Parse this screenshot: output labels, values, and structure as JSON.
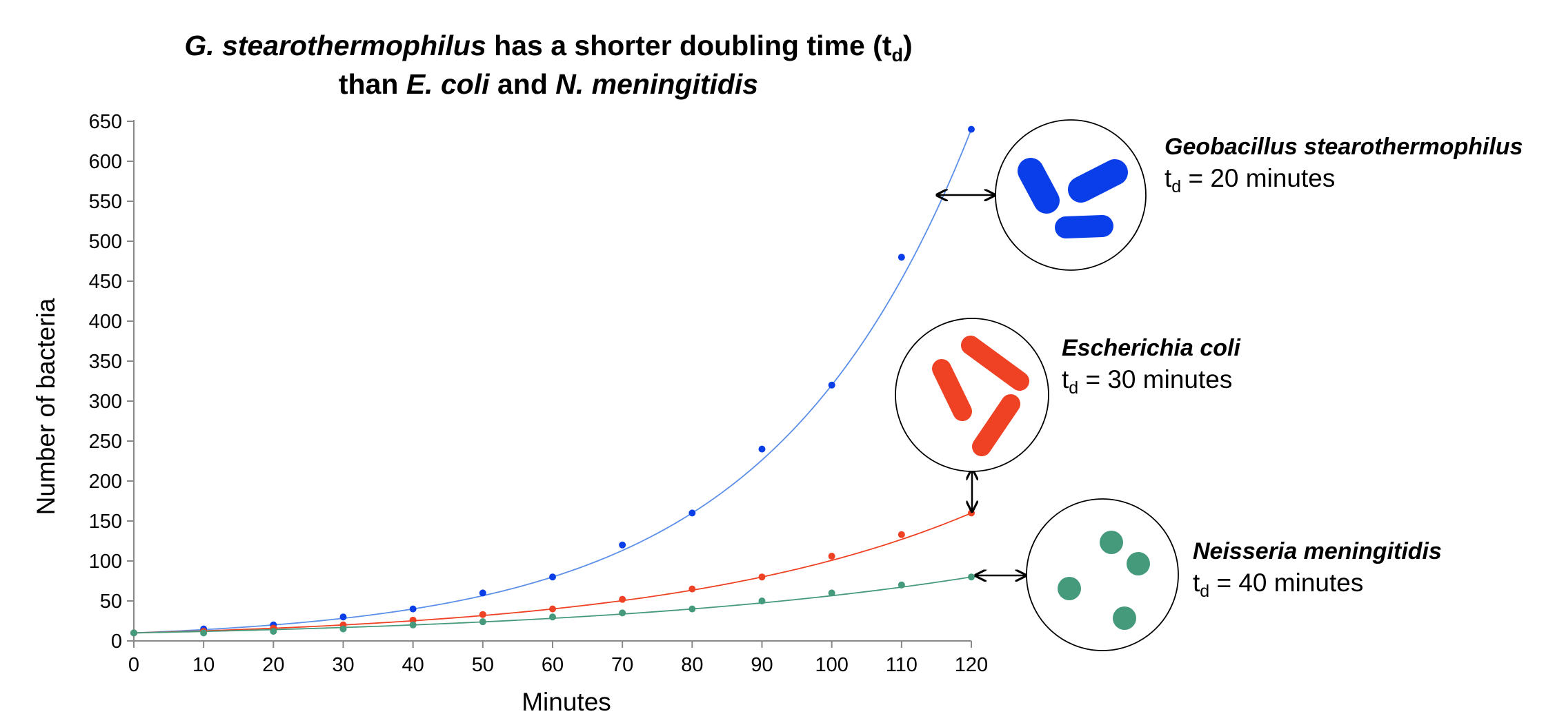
{
  "chart_data": {
    "type": "scatter",
    "title": {
      "line1_italic": "G. stearothermophilus",
      "line1_text": " has a shorter doubling time (t",
      "line1_sub": "d",
      "line1_end": ")",
      "line2_text": "than ",
      "line2_italic1": "E. coli",
      "line2_mid": " and ",
      "line2_italic2": "N. meningitidis"
    },
    "xlabel": "Minutes",
    "ylabel": "Number of bacteria",
    "xlim": [
      0,
      120
    ],
    "ylim": [
      0,
      650
    ],
    "x_ticks": [
      0,
      10,
      20,
      30,
      40,
      50,
      60,
      70,
      80,
      90,
      100,
      110,
      120
    ],
    "y_ticks": [
      0,
      50,
      100,
      150,
      200,
      250,
      300,
      350,
      400,
      450,
      500,
      550,
      600,
      650
    ],
    "x": [
      0,
      10,
      20,
      30,
      40,
      50,
      60,
      70,
      80,
      90,
      100,
      110,
      120
    ],
    "series": [
      {
        "key": "geobacillus",
        "values": [
          10,
          15,
          20,
          30,
          40,
          60,
          80,
          120,
          160,
          240,
          320,
          480,
          640
        ],
        "color": "#0a3ee8",
        "line_color": "#5b8fe8",
        "trendline": {
          "type": "exponential",
          "a": 10,
          "doubling": 20
        }
      },
      {
        "key": "escherichia",
        "values": [
          10,
          12,
          16,
          20,
          26,
          33,
          40,
          52,
          65,
          80,
          106,
          133,
          160
        ],
        "color": "#ef4123",
        "line_color": "#ef4123",
        "trendline": {
          "type": "exponential",
          "a": 10,
          "doubling": 30
        }
      },
      {
        "key": "neisseria",
        "values": [
          10,
          10,
          12,
          15,
          20,
          24,
          30,
          35,
          40,
          50,
          60,
          70,
          80
        ],
        "color": "#459a7b",
        "line_color": "#459a7b",
        "trendline": {
          "type": "exponential",
          "a": 10,
          "doubling": 40
        }
      }
    ],
    "annotations": [
      {
        "key": "geobacillus",
        "name": "Geobacillus stearothermophilus",
        "td_prefix": "t",
        "td_sub": "d",
        "td_text": " = 20 minutes",
        "icon": "rod-bacteria-icon",
        "color": "#0a3ee8"
      },
      {
        "key": "escherichia",
        "name": "Escherichia coli",
        "td_prefix": "t",
        "td_sub": "d",
        "td_text": " = 30 minutes",
        "icon": "rod-bacteria-icon",
        "color": "#ef4123"
      },
      {
        "key": "neisseria",
        "name": "Neisseria meningitidis",
        "td_prefix": "t",
        "td_sub": "d",
        "td_text": " = 40 minutes",
        "icon": "coccus-bacteria-icon",
        "color": "#459a7b"
      }
    ],
    "grid": false,
    "legend": "none"
  }
}
